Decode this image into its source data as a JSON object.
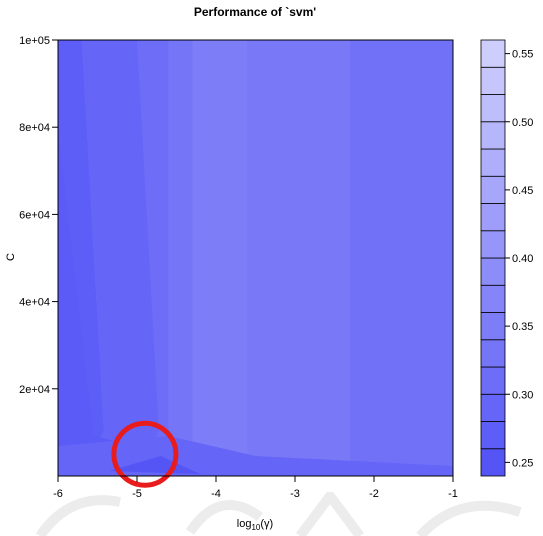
{
  "chart_data": {
    "type": "heatmap",
    "title": "Performance of `svm'",
    "xlabel_main": "log",
    "xlabel_sub": "10",
    "xlabel_tail": "(γ)",
    "ylabel": "C",
    "xlim": [
      -6,
      -1
    ],
    "ylim": [
      0,
      100000
    ],
    "x_ticks": [
      -6,
      -5,
      -4,
      -3,
      -2,
      -1
    ],
    "x_tick_labels": [
      "-6",
      "-5",
      "-4",
      "-3",
      "-2",
      "-1"
    ],
    "y_ticks": [
      20000,
      40000,
      60000,
      80000,
      100000
    ],
    "y_tick_labels": [
      "2e+04",
      "4e+04",
      "6e+04",
      "8e+04",
      "1e+05"
    ],
    "colorbar": {
      "range": [
        0.24,
        0.56
      ],
      "ticks": [
        0.25,
        0.3,
        0.35,
        0.4,
        0.45,
        0.5,
        0.55
      ],
      "tick_labels": [
        "0.25",
        "0.30",
        "0.35",
        "0.40",
        "0.45",
        "0.50",
        "0.55"
      ],
      "levels": 16,
      "low_color": "#5151f6",
      "high_color": "#d2d2fd"
    },
    "regions": [
      {
        "x_range": [
          -6,
          -5.7
        ],
        "error": 0.27
      },
      {
        "x_range": [
          -5.7,
          -5.0
        ],
        "error": 0.29
      },
      {
        "x_range": [
          -5.0,
          -4.6
        ],
        "error": 0.31
      },
      {
        "x_range": [
          -4.6,
          -4.3
        ],
        "error": 0.33
      },
      {
        "x_range": [
          -4.3,
          -3.6
        ],
        "error": 0.35
      },
      {
        "x_range": [
          -3.6,
          -2.3
        ],
        "error": 0.34
      },
      {
        "x_range": [
          -2.3,
          -1.0
        ],
        "error": 0.32
      }
    ],
    "annotation": {
      "type": "circle",
      "color": "#e81c1c",
      "x": -4.9,
      "y": 5000
    },
    "grid": false
  }
}
